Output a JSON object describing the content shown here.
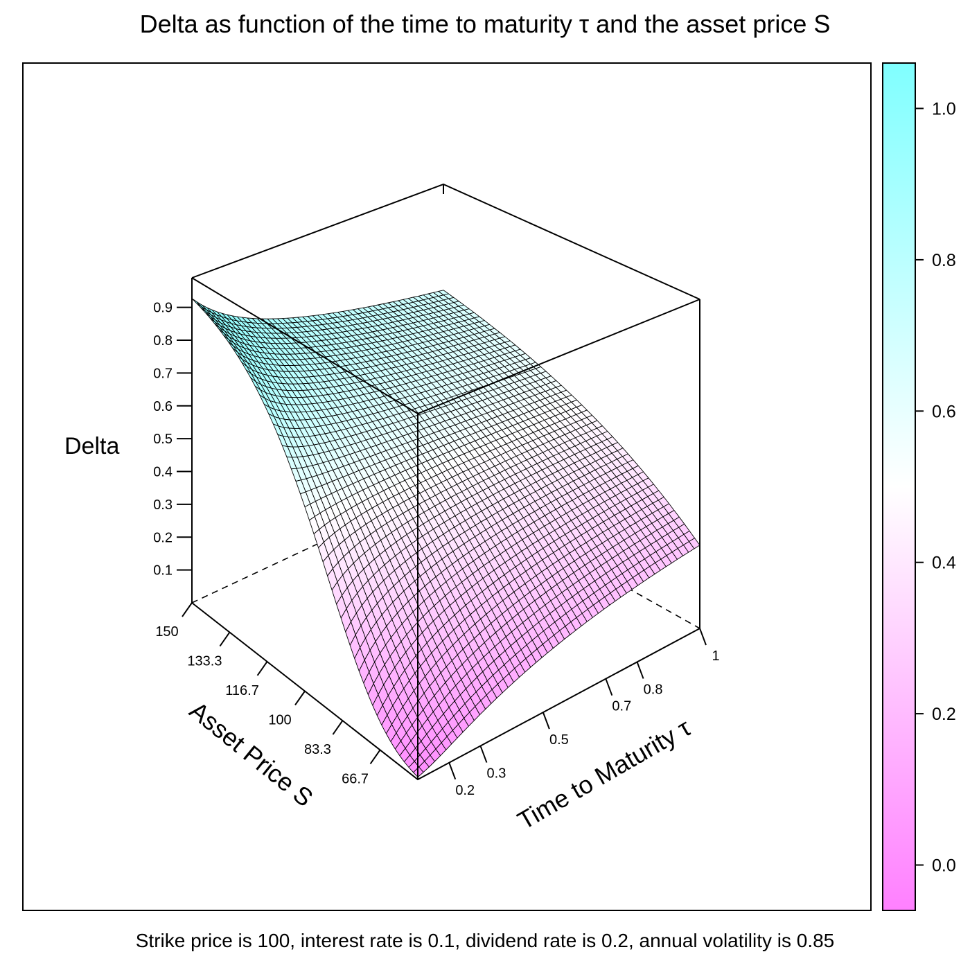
{
  "chart_data": {
    "type": "surface-3d",
    "title": "Delta as function of the time to maturity τ and the asset price S",
    "subtitle": "Strike price is 100, interest rate is 0.1, dividend rate is 0.2, annual volatility is 0.85",
    "x_axis": {
      "label": "Asset Price S",
      "range": [
        50,
        150
      ],
      "ticks": [
        66.7,
        83.3,
        100,
        116.7,
        133.3,
        150
      ]
    },
    "y_axis": {
      "label": "Time to Maturity  τ",
      "range": [
        0.1,
        1.0
      ],
      "ticks": [
        0.2,
        0.3,
        0.5,
        0.7,
        0.8,
        1
      ]
    },
    "z_axis": {
      "label": "Delta",
      "ticks": [
        0.1,
        0.2,
        0.3,
        0.4,
        0.5,
        0.6,
        0.7,
        0.8,
        0.9
      ]
    },
    "colorkey": {
      "ticks": [
        "0.0",
        "0.2",
        "0.4",
        "0.6",
        "0.8",
        "1.0"
      ],
      "range": [
        -0.06,
        1.06
      ],
      "low_color": "#ff80ff",
      "mid_color": "#ffffff",
      "high_color": "#80ffff"
    },
    "model": {
      "strike": 100,
      "interest_rate": 0.1,
      "dividend_rate": 0.2,
      "volatility": 0.85,
      "grid_s": 50,
      "grid_tau": 50
    }
  }
}
